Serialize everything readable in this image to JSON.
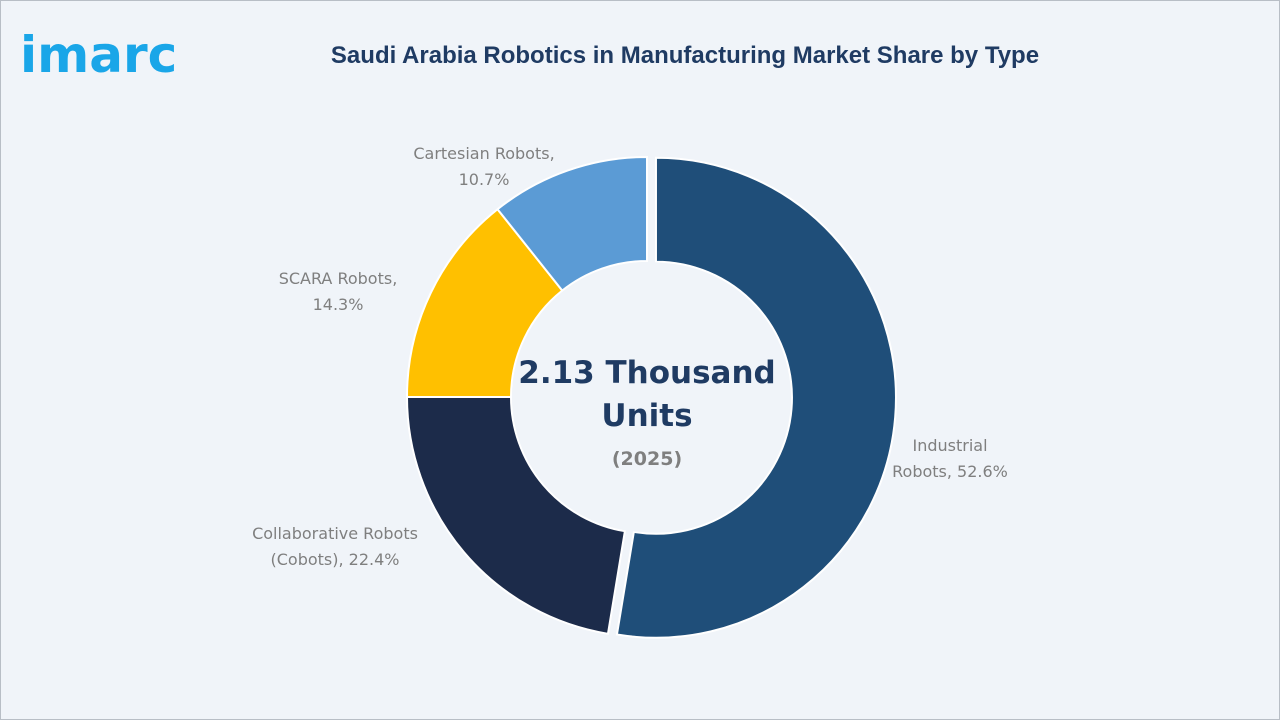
{
  "brand": {
    "logo_text": "imarc",
    "logo_color": "#1aa6e8"
  },
  "chart_data": {
    "type": "pie",
    "title": "Saudi Arabia Robotics in Manufacturing Market Share by Type",
    "center_value": [
      "2.13 Thousand",
      "Units"
    ],
    "center_year": "(2025)",
    "slices": [
      {
        "name": "Industrial Robots",
        "value": 52.6,
        "label": [
          "Industrial",
          "Robots, 52.6%"
        ],
        "color": "#1f4e79"
      },
      {
        "name": "Collaborative Robots (Cobots)",
        "value": 22.4,
        "label": [
          "Collaborative Robots",
          "(Cobots), 22.4%"
        ],
        "color": "#1c2b4a"
      },
      {
        "name": "SCARA Robots",
        "value": 14.3,
        "label": [
          "SCARA Robots,",
          "14.3%"
        ],
        "color": "#ffc000"
      },
      {
        "name": "Cartesian Robots",
        "value": 10.7,
        "label": [
          "Cartesian Robots,",
          "10.7%"
        ],
        "color": "#5b9bd5"
      }
    ]
  }
}
